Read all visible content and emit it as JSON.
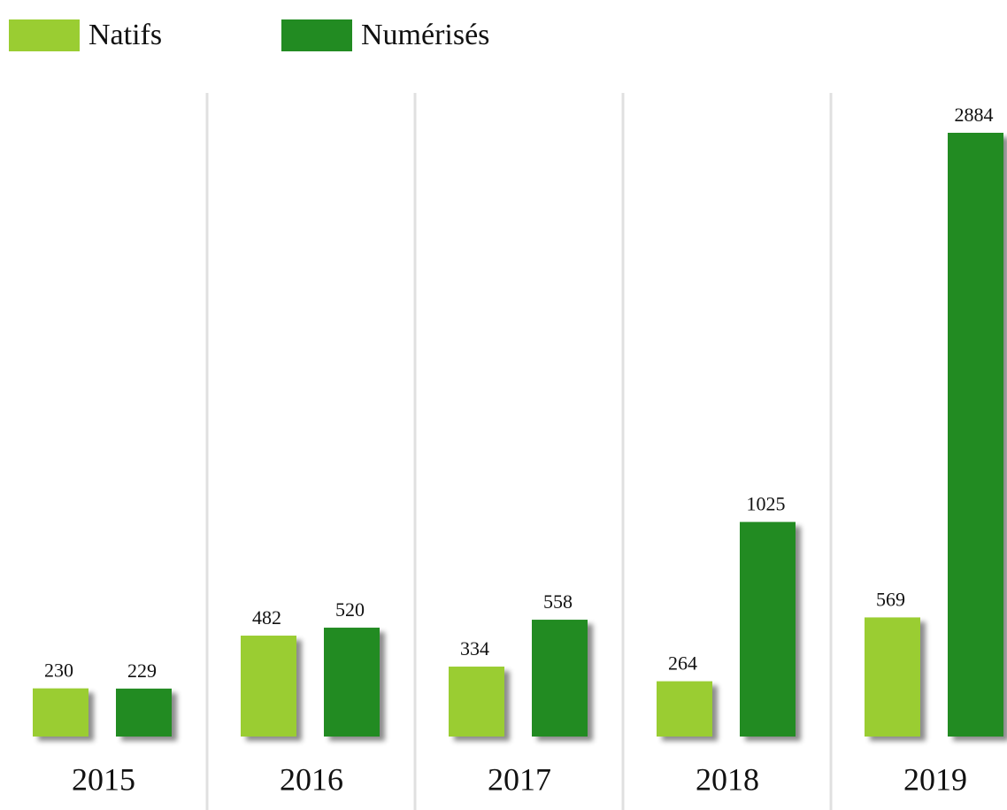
{
  "chart_data": {
    "type": "bar",
    "categories": [
      "2015",
      "2016",
      "2017",
      "2018",
      "2019"
    ],
    "series": [
      {
        "name": "Natifs",
        "color": "#9acd32",
        "values": [
          230,
          482,
          334,
          264,
          569
        ]
      },
      {
        "name": "Numérisés",
        "color": "#228b22",
        "values": [
          229,
          520,
          558,
          1025,
          2884
        ]
      }
    ]
  }
}
